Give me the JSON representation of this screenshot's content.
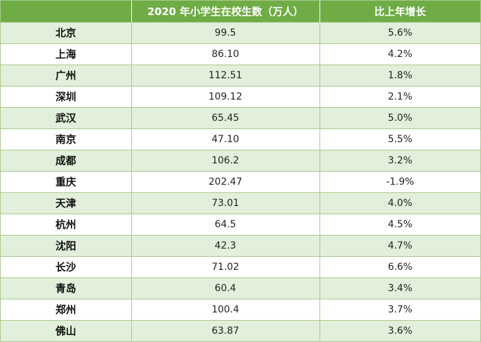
{
  "table": {
    "headers": [
      "",
      "2020 年小学生在校生数（万人）",
      "比上年增长"
    ],
    "rows": [
      {
        "city": "北京",
        "students": "99.5",
        "growth": "5.6%"
      },
      {
        "city": "上海",
        "students": "86.10",
        "growth": "4.2%"
      },
      {
        "city": "广州",
        "students": "112.51",
        "growth": "1.8%"
      },
      {
        "city": "深圳",
        "students": "109.12",
        "growth": "2.1%"
      },
      {
        "city": "武汉",
        "students": "65.45",
        "growth": "5.0%"
      },
      {
        "city": "南京",
        "students": "47.10",
        "growth": "5.5%"
      },
      {
        "city": "成都",
        "students": "106.2",
        "growth": "3.2%"
      },
      {
        "city": "重庆",
        "students": "202.47",
        "growth": "-1.9%"
      },
      {
        "city": "天津",
        "students": "73.01",
        "growth": "4.0%"
      },
      {
        "city": "杭州",
        "students": "64.5",
        "growth": "4.5%"
      },
      {
        "city": "沈阳",
        "students": "42.3",
        "growth": "4.7%"
      },
      {
        "city": "长沙",
        "students": "71.02",
        "growth": "6.6%"
      },
      {
        "city": "青岛",
        "students": "60.4",
        "growth": "3.4%"
      },
      {
        "city": "郑州",
        "students": "100.4",
        "growth": "3.7%"
      },
      {
        "city": "佛山",
        "students": "63.87",
        "growth": "3.6%"
      }
    ]
  },
  "colors": {
    "header_bg": "#6fac46",
    "stripe_bg": "#e2efda",
    "grid_line": "#a9c98c"
  }
}
